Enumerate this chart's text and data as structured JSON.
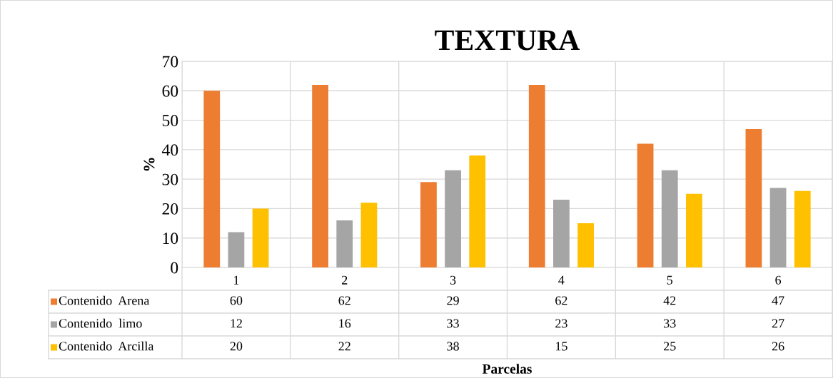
{
  "chart_data": {
    "type": "bar",
    "title": "TEXTURA",
    "ylabel": "%",
    "annotations": [
      "Parcelas"
    ],
    "categories": [
      "1",
      "2",
      "3",
      "4",
      "5",
      "6"
    ],
    "series": [
      {
        "name": "Contenido  Arena",
        "color": "#ed7d31",
        "values": [
          60,
          62,
          29,
          62,
          42,
          47
        ]
      },
      {
        "name": "Contenido  limo",
        "color": "#a5a5a5",
        "values": [
          12,
          16,
          33,
          23,
          33,
          27
        ]
      },
      {
        "name": "Contenido  Arcilla",
        "color": "#ffc000",
        "values": [
          20,
          22,
          38,
          15,
          25,
          26
        ]
      }
    ],
    "ylim": [
      0,
      70
    ],
    "yticks": [
      0,
      10,
      20,
      30,
      40,
      50,
      60,
      70
    ],
    "grid": true,
    "legend": "bottom",
    "data_labels": true
  }
}
